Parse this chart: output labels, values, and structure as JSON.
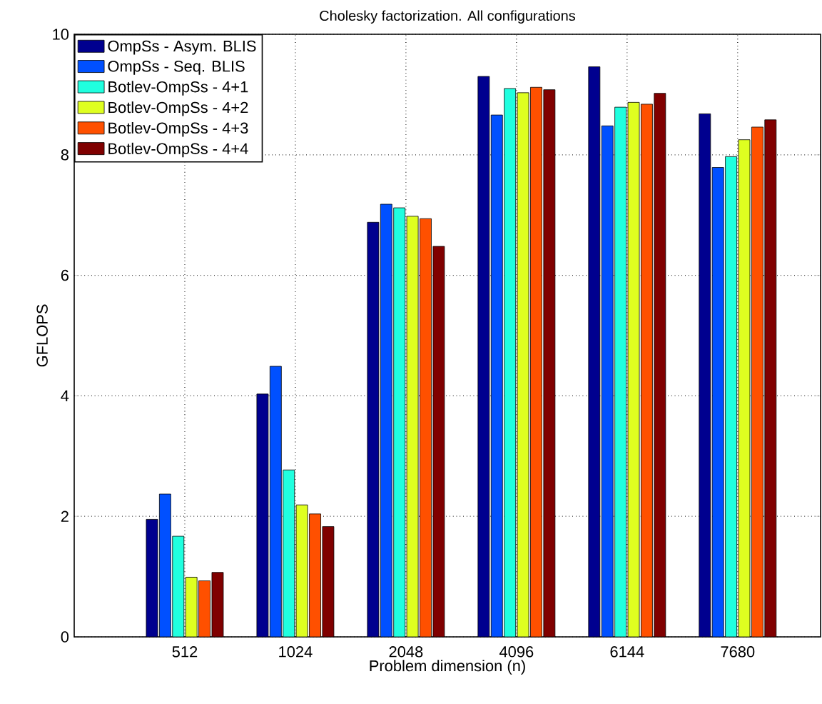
{
  "chart_data": {
    "type": "bar",
    "title": "Cholesky factorization. All configurations",
    "xlabel": "Problem dimension (n)",
    "ylabel": "GFLOPS",
    "categories": [
      "512",
      "1024",
      "2048",
      "4096",
      "6144",
      "7680"
    ],
    "series": [
      {
        "name": "OmpSs - Asym. BLIS",
        "color": "#00008f",
        "values": [
          1.95,
          4.03,
          6.88,
          9.3,
          9.46,
          8.68
        ]
      },
      {
        "name": "OmpSs - Seq. BLIS",
        "color": "#0050ff",
        "values": [
          2.37,
          4.49,
          7.18,
          8.66,
          8.48,
          7.79
        ]
      },
      {
        "name": "Botlev-OmpSs - 4+1",
        "color": "#20ffdf",
        "values": [
          1.67,
          2.77,
          7.12,
          9.1,
          8.79,
          7.97
        ]
      },
      {
        "name": "Botlev-OmpSs - 4+2",
        "color": "#dfff20",
        "values": [
          0.99,
          2.19,
          6.98,
          9.03,
          8.87,
          8.25
        ]
      },
      {
        "name": "Botlev-OmpSs - 4+3",
        "color": "#ff5000",
        "values": [
          0.93,
          2.04,
          6.94,
          9.12,
          8.84,
          8.46
        ]
      },
      {
        "name": "Botlev-OmpSs - 4+4",
        "color": "#800000",
        "values": [
          1.07,
          1.83,
          6.48,
          9.08,
          9.02,
          8.58
        ]
      }
    ],
    "ylim": [
      0,
      10
    ],
    "yticks": [
      0,
      2,
      4,
      6,
      8,
      10
    ],
    "grid": true,
    "legend": "top left"
  }
}
